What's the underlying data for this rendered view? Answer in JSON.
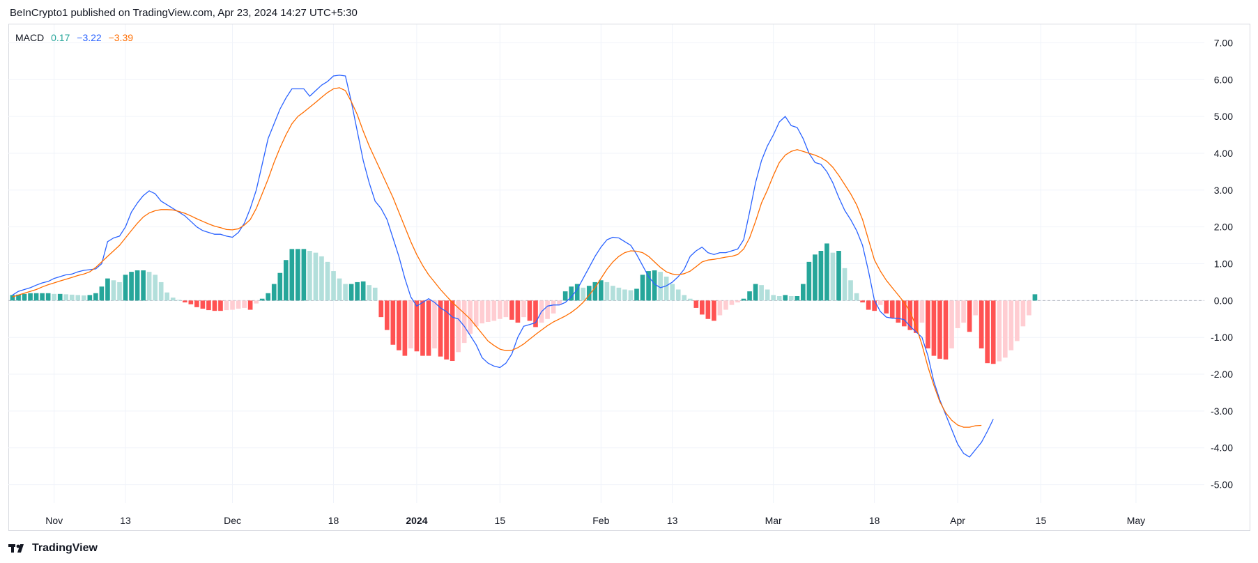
{
  "header": {
    "publisher_text": "BeInCrypto1 published on TradingView.com, Apr 23, 2024 14:27 UTC+5:30"
  },
  "legend": {
    "name": "MACD",
    "hist_value": "0.17",
    "macd_value": "−3.22",
    "signal_value": "−3.39"
  },
  "footer": {
    "brand": "TradingView"
  },
  "colors": {
    "macd": "#2962ff",
    "signal": "#ff6d00",
    "hist_pos_strong": "#26a69a",
    "hist_pos_weak": "#b2dfdb",
    "hist_neg_strong": "#ff5252",
    "hist_neg_weak": "#ffcdd2",
    "grid": "#f0f3fa",
    "text": "#131722"
  },
  "chart_data": {
    "type": "line",
    "title": "MACD",
    "ylim": [
      -5.5,
      7.5
    ],
    "y_ticks": [
      "7.00",
      "6.00",
      "5.00",
      "4.00",
      "3.00",
      "2.00",
      "1.00",
      "0.00",
      "-1.00",
      "-2.00",
      "-3.00",
      "-4.00",
      "-5.00"
    ],
    "y_tick_values": [
      7,
      6,
      5,
      4,
      3,
      2,
      1,
      0,
      -1,
      -2,
      -3,
      -4,
      -5
    ],
    "x_ticks": [
      {
        "label": "Nov",
        "day": 0,
        "bold": false
      },
      {
        "label": "13",
        "day": 12,
        "bold": false
      },
      {
        "label": "Dec",
        "day": 30,
        "bold": false
      },
      {
        "label": "18",
        "day": 47,
        "bold": false
      },
      {
        "label": "2024",
        "day": 61,
        "bold": true
      },
      {
        "label": "15",
        "day": 75,
        "bold": false
      },
      {
        "label": "Feb",
        "day": 92,
        "bold": false
      },
      {
        "label": "13",
        "day": 104,
        "bold": false
      },
      {
        "label": "Mar",
        "day": 121,
        "bold": false
      },
      {
        "label": "18",
        "day": 138,
        "bold": false
      },
      {
        "label": "Apr",
        "day": 152,
        "bold": false
      },
      {
        "label": "15",
        "day": 166,
        "bold": false
      },
      {
        "label": "May",
        "day": 182,
        "bold": false
      }
    ],
    "x_range_days": [
      -7.7,
      193.5
    ],
    "series": [
      {
        "name": "MACD",
        "start_day": -7,
        "values": [
          0.15,
          0.25,
          0.3,
          0.35,
          0.42,
          0.48,
          0.52,
          0.6,
          0.65,
          0.7,
          0.72,
          0.78,
          0.82,
          0.84,
          0.86,
          1.0,
          1.6,
          1.7,
          1.75,
          2.0,
          2.4,
          2.65,
          2.85,
          2.98,
          2.9,
          2.7,
          2.6,
          2.5,
          2.4,
          2.3,
          2.15,
          2.0,
          1.9,
          1.85,
          1.8,
          1.8,
          1.75,
          1.72,
          1.85,
          2.1,
          2.5,
          3.0,
          3.7,
          4.4,
          4.8,
          5.2,
          5.5,
          5.75,
          5.75,
          5.75,
          5.55,
          5.7,
          5.85,
          5.95,
          6.1,
          6.12,
          6.1,
          5.4,
          4.6,
          3.8,
          3.2,
          2.7,
          2.5,
          2.2,
          1.7,
          1.2,
          0.6,
          0.1,
          -0.15,
          -0.05,
          0.05,
          -0.05,
          -0.2,
          -0.3,
          -0.45,
          -0.5,
          -0.7,
          -0.95,
          -1.2,
          -1.55,
          -1.7,
          -1.78,
          -1.82,
          -1.7,
          -1.45,
          -1.0,
          -0.7,
          -0.65,
          -0.6,
          -0.3,
          -0.15,
          -0.12,
          -0.12,
          -0.05,
          0.1,
          0.3,
          0.6,
          0.9,
          1.2,
          1.45,
          1.65,
          1.72,
          1.7,
          1.6,
          1.5,
          1.25,
          0.95,
          0.65,
          0.45,
          0.35,
          0.4,
          0.5,
          0.65,
          0.85,
          1.2,
          1.35,
          1.45,
          1.3,
          1.25,
          1.3,
          1.3,
          1.35,
          1.4,
          1.65,
          2.4,
          3.2,
          3.8,
          4.2,
          4.5,
          4.85,
          5.0,
          4.75,
          4.7,
          4.4,
          4.0,
          3.75,
          3.7,
          3.5,
          3.2,
          2.8,
          2.45,
          2.2,
          1.9,
          1.5,
          0.8,
          0.0,
          -0.3,
          -0.45,
          -0.48,
          -0.48,
          -0.52,
          -0.7,
          -0.85,
          -1.0,
          -1.5,
          -2.2,
          -2.7,
          -3.1,
          -3.5,
          -3.9,
          -4.15,
          -4.25,
          -4.05,
          -3.85,
          -3.55,
          -3.22
        ]
      },
      {
        "name": "Signal",
        "start_day": -7,
        "values": [
          0.1,
          0.15,
          0.2,
          0.25,
          0.3,
          0.37,
          0.43,
          0.48,
          0.53,
          0.58,
          0.63,
          0.68,
          0.72,
          0.78,
          0.9,
          1.05,
          1.2,
          1.35,
          1.5,
          1.7,
          1.9,
          2.1,
          2.27,
          2.38,
          2.44,
          2.47,
          2.47,
          2.46,
          2.42,
          2.37,
          2.3,
          2.22,
          2.15,
          2.08,
          2.02,
          1.98,
          1.93,
          1.92,
          1.95,
          2.05,
          2.2,
          2.5,
          2.9,
          3.3,
          3.75,
          4.15,
          4.5,
          4.8,
          5.0,
          5.12,
          5.25,
          5.38,
          5.52,
          5.65,
          5.75,
          5.78,
          5.7,
          5.4,
          5.05,
          4.6,
          4.2,
          3.85,
          3.5,
          3.15,
          2.8,
          2.4,
          2.0,
          1.6,
          1.25,
          0.95,
          0.7,
          0.5,
          0.3,
          0.12,
          -0.05,
          -0.2,
          -0.35,
          -0.5,
          -0.7,
          -0.9,
          -1.1,
          -1.22,
          -1.32,
          -1.36,
          -1.35,
          -1.28,
          -1.18,
          -1.05,
          -0.92,
          -0.8,
          -0.68,
          -0.58,
          -0.5,
          -0.42,
          -0.32,
          -0.2,
          -0.05,
          0.15,
          0.35,
          0.6,
          0.85,
          1.05,
          1.2,
          1.3,
          1.35,
          1.34,
          1.3,
          1.2,
          1.05,
          0.9,
          0.78,
          0.72,
          0.7,
          0.73,
          0.8,
          0.92,
          1.05,
          1.1,
          1.12,
          1.15,
          1.18,
          1.2,
          1.25,
          1.4,
          1.7,
          2.15,
          2.65,
          3.0,
          3.4,
          3.75,
          3.95,
          4.05,
          4.1,
          4.05,
          4.0,
          3.95,
          3.88,
          3.78,
          3.62,
          3.4,
          3.15,
          2.9,
          2.6,
          2.2,
          1.65,
          1.1,
          0.8,
          0.55,
          0.35,
          0.15,
          -0.05,
          -0.3,
          -0.7,
          -1.2,
          -1.8,
          -2.3,
          -2.75,
          -3.05,
          -3.25,
          -3.38,
          -3.44,
          -3.44,
          -3.4,
          -3.39
        ]
      }
    ],
    "histogram": {
      "name": "Histogram",
      "start_day": -7,
      "values": [
        0.15,
        0.16,
        0.18,
        0.2,
        0.2,
        0.2,
        0.2,
        0.18,
        0.18,
        0.17,
        0.16,
        0.15,
        0.14,
        0.15,
        0.2,
        0.38,
        0.6,
        0.55,
        0.5,
        0.7,
        0.78,
        0.82,
        0.82,
        0.78,
        0.7,
        0.5,
        0.22,
        0.08,
        0.02,
        -0.05,
        -0.1,
        -0.18,
        -0.22,
        -0.26,
        -0.28,
        -0.28,
        -0.26,
        -0.25,
        -0.22,
        -0.2,
        -0.25,
        -0.08,
        0.05,
        0.2,
        0.45,
        0.75,
        1.1,
        1.4,
        1.4,
        1.4,
        1.35,
        1.3,
        1.2,
        1.05,
        0.8,
        0.6,
        0.45,
        0.45,
        0.5,
        0.52,
        0.42,
        0.35,
        -0.45,
        -0.8,
        -1.2,
        -1.35,
        -1.5,
        -1.3,
        -1.38,
        -1.5,
        -1.5,
        -1.3,
        -1.52,
        -1.6,
        -1.64,
        -1.4,
        -1.15,
        -0.9,
        -0.7,
        -0.62,
        -0.58,
        -0.55,
        -0.5,
        -0.45,
        -0.52,
        -0.6,
        -0.45,
        -0.55,
        -0.72,
        -0.6,
        -0.5,
        -0.35,
        -0.12,
        0.25,
        0.38,
        0.45,
        0.35,
        0.4,
        0.5,
        0.55,
        0.5,
        0.4,
        0.35,
        0.3,
        0.28,
        0.32,
        0.7,
        0.8,
        0.82,
        0.78,
        0.65,
        0.45,
        0.3,
        0.15,
        0.05,
        -0.2,
        -0.38,
        -0.5,
        -0.55,
        -0.4,
        -0.25,
        -0.12,
        -0.05,
        0.05,
        0.25,
        0.45,
        0.42,
        0.3,
        0.15,
        0.12,
        0.15,
        0.12,
        0.12,
        0.45,
        1.05,
        1.25,
        1.35,
        1.55,
        1.3,
        1.35,
        0.88,
        0.55,
        0.2,
        -0.05,
        -0.25,
        -0.28,
        -0.12,
        -0.35,
        -0.48,
        -0.6,
        -0.7,
        -0.8,
        -0.88,
        -0.6,
        -1.3,
        -1.5,
        -1.58,
        -1.6,
        -1.3,
        -0.75,
        -0.6,
        -0.85,
        -0.4,
        -1.3,
        -1.7,
        -1.72,
        -1.65,
        -1.55,
        -1.35,
        -1.1,
        -0.7,
        -0.4,
        0.17
      ]
    }
  }
}
